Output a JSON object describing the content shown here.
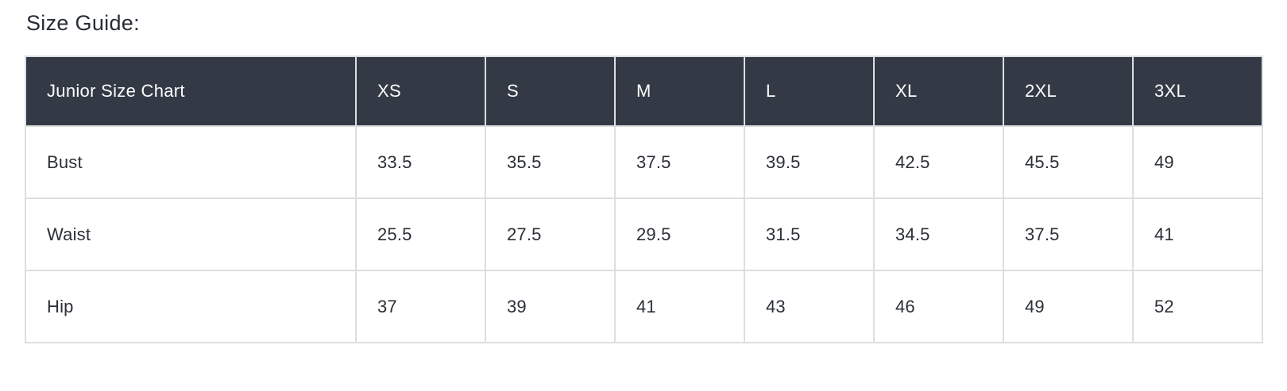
{
  "page": {
    "title": "Size Guide:"
  },
  "colors": {
    "page_bg": "#ffffff",
    "title_text": "#272d36",
    "header_bg": "#333a45",
    "header_text": "#fcfcfc",
    "body_text": "#2b2f36",
    "border": "#dcdee0"
  },
  "table": {
    "columns": [
      "Junior Size Chart",
      "XS",
      "S",
      "M",
      "L",
      "XL",
      "2XL",
      "3XL"
    ],
    "rows": [
      {
        "label": "Bust",
        "values": [
          "33.5",
          "35.5",
          "37.5",
          "39.5",
          "42.5",
          "45.5",
          "49"
        ]
      },
      {
        "label": "Waist",
        "values": [
          "25.5",
          "27.5",
          "29.5",
          "31.5",
          "34.5",
          "37.5",
          "41"
        ]
      },
      {
        "label": "Hip",
        "values": [
          "37",
          "39",
          "41",
          "43",
          "46",
          "49",
          "52"
        ]
      }
    ]
  },
  "chart_data": {
    "type": "table",
    "title": "Size Guide:",
    "columns": [
      "Junior Size Chart",
      "XS",
      "S",
      "M",
      "L",
      "XL",
      "2XL",
      "3XL"
    ],
    "rows": [
      [
        "Bust",
        33.5,
        35.5,
        37.5,
        39.5,
        42.5,
        45.5,
        49
      ],
      [
        "Waist",
        25.5,
        27.5,
        29.5,
        31.5,
        34.5,
        37.5,
        41
      ],
      [
        "Hip",
        37,
        39,
        41,
        43,
        46,
        49,
        52
      ]
    ]
  }
}
